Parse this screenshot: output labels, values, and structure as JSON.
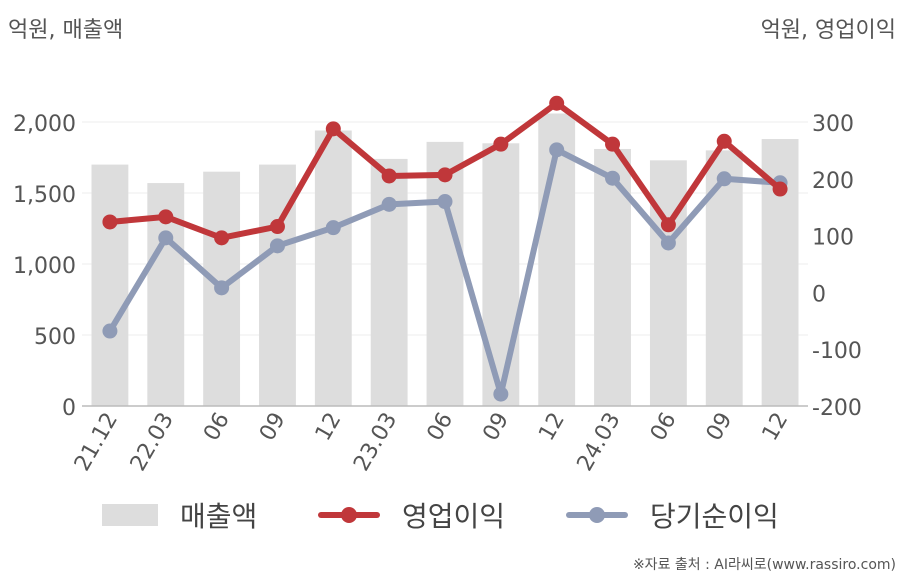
{
  "unit_left": "억원, 매출액",
  "unit_right": "억원, 영업이익",
  "source": "※자료 출처 : AI라씨로(www.rassiro.com)",
  "colors": {
    "bar": "#dddddd",
    "operating_profit": "#c0373a",
    "net_income": "#8f9bb6",
    "grid": "#eeeeee",
    "axis_text": "#555555"
  },
  "chart_data": {
    "type": "bar",
    "categories": [
      "21.12",
      "22.03",
      "06",
      "09",
      "12",
      "23.03",
      "06",
      "09",
      "12",
      "24.03",
      "06",
      "09",
      "12"
    ],
    "left_axis": {
      "ylim": [
        0,
        2000
      ],
      "ticks": [
        "0",
        "500",
        "1,000",
        "1,500",
        "2,000"
      ]
    },
    "right_axis": {
      "ylim": [
        -200,
        300
      ],
      "ticks": [
        "-200",
        "-100",
        "0",
        "100",
        "200",
        "300"
      ]
    },
    "series": [
      {
        "name": "매출액",
        "type": "bar",
        "axis": "left",
        "values": [
          1700,
          1570,
          1650,
          1700,
          1940,
          1740,
          1860,
          1850,
          2060,
          1810,
          1730,
          1800,
          1880
        ]
      },
      {
        "name": "영업이익",
        "type": "line",
        "axis": "right",
        "values": [
          124,
          133,
          96,
          116,
          288,
          205,
          207,
          261,
          333,
          261,
          119,
          266,
          182
        ]
      },
      {
        "name": "당기순이익",
        "type": "line",
        "axis": "right",
        "values": [
          -68,
          96,
          8,
          82,
          114,
          155,
          160,
          -179,
          251,
          201,
          87,
          200,
          193
        ]
      }
    ],
    "grid": true,
    "legend_position": "bottom"
  }
}
